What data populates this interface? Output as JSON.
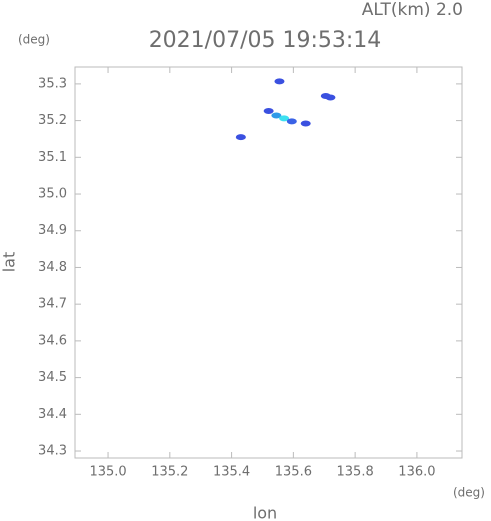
{
  "chart_data": {
    "type": "scatter",
    "title": "2021/07/05 19:53:14",
    "annotation": "ALT(km) 2.0",
    "y_unit": "(deg)",
    "x_unit": "(deg)",
    "xlabel": "lon",
    "ylabel": "lat",
    "x": [
      135.555,
      135.705,
      135.72,
      135.52,
      135.545,
      135.57,
      135.595,
      135.64,
      135.43
    ],
    "y": [
      35.307,
      35.267,
      35.263,
      35.226,
      35.214,
      35.206,
      35.198,
      35.192,
      35.155
    ],
    "colors": [
      "#3a50e0",
      "#3a50e0",
      "#3a50e0",
      "#3a50e0",
      "#2e9ae8",
      "#3de0f0",
      "#3a62e6",
      "#3a50e0",
      "#3a50e0"
    ],
    "xlim": [
      134.893,
      136.146
    ],
    "ylim": [
      34.281,
      35.346
    ],
    "xticks": [
      {
        "value": 135.0,
        "label": "135.0"
      },
      135.2,
      135.4,
      135.6,
      135.8,
      {
        "value": 136.0,
        "label": "136.0"
      }
    ],
    "yticks": [
      34.3,
      34.4,
      34.5,
      34.6,
      34.7,
      34.8,
      34.9,
      {
        "value": 35.0,
        "label": "35.0"
      },
      35.1,
      35.2,
      35.3
    ]
  }
}
